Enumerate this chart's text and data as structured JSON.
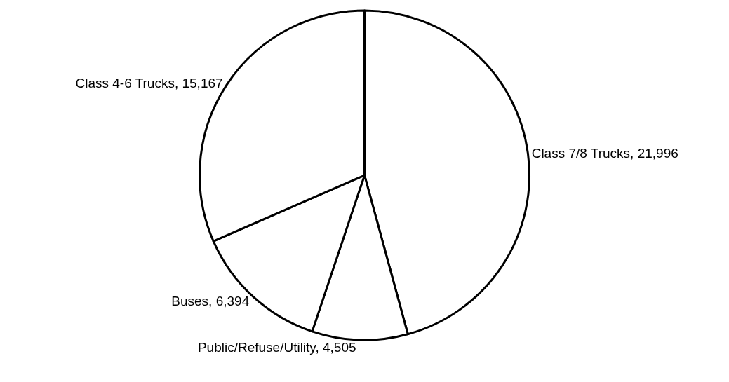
{
  "chart_data": {
    "type": "pie",
    "categories": [
      "Class 7/8 Trucks",
      "Public/Refuse/Utility",
      "Buses",
      "Class 4-6 Trucks"
    ],
    "values": [
      21996,
      4505,
      6394,
      15167
    ],
    "value_labels": [
      "21,996",
      "4,505",
      "6,394",
      "15,167"
    ],
    "colors": [
      "#ffffff",
      "#ffffff",
      "#ffffff",
      "#ffffff"
    ],
    "legend": false
  }
}
